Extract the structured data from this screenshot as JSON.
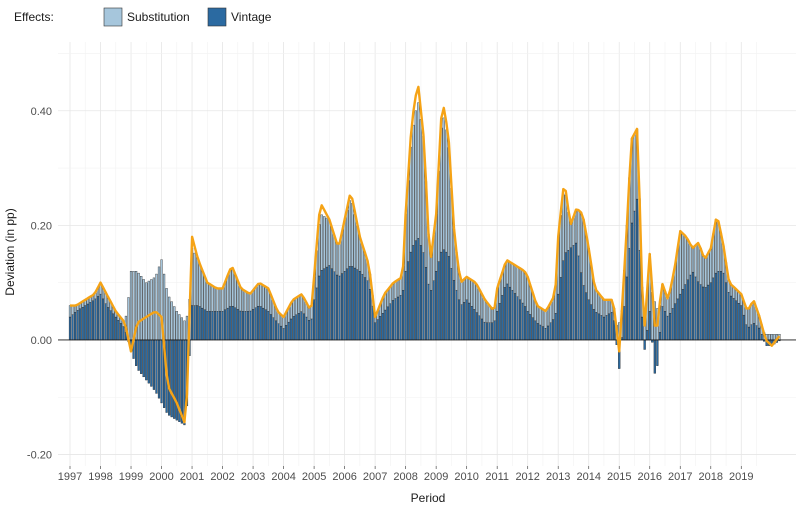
{
  "chart_data": {
    "type": "bar",
    "title": "",
    "xlabel": "Period",
    "ylabel": "Deviation (in pp)",
    "ylim": [
      -0.22,
      0.52
    ],
    "y_ticks": [
      -0.2,
      0.0,
      0.2,
      0.4
    ],
    "y_tick_labels": [
      "-0.20",
      "0.00",
      "0.20",
      "0.40"
    ],
    "x_range": [
      1997.0,
      2020.4
    ],
    "x_ticks": [
      1997,
      1998,
      1999,
      2000,
      2001,
      2002,
      2003,
      2004,
      2005,
      2006,
      2007,
      2008,
      2009,
      2010,
      2011,
      2012,
      2013,
      2014,
      2015,
      2016,
      2017,
      2018,
      2019
    ],
    "x_tick_labels": [
      "1997",
      "1998",
      "1999",
      "2000",
      "2001",
      "2002",
      "2003",
      "2004",
      "2005",
      "2006",
      "2007",
      "2008",
      "2009",
      "2010",
      "2011",
      "2012",
      "2013",
      "2014",
      "2015",
      "2016",
      "2017",
      "2018",
      "2019"
    ],
    "grid": true,
    "legend": {
      "title": "Effects:",
      "position": "top-left",
      "entries": [
        {
          "name": "Substitution",
          "color": "#a6c6dc"
        },
        {
          "name": "Vintage",
          "color": "#2b6aa1"
        }
      ]
    },
    "line_color": "#f5a316",
    "bar_outline": "#1a1a1a",
    "stacked": true,
    "series_breakpoints": {
      "x": [
        1997.0,
        1997.2,
        1997.5,
        1997.8,
        1998.0,
        1998.2,
        1998.5,
        1998.8,
        1999.0,
        1999.2,
        1999.5,
        1999.8,
        2000.0,
        2000.2,
        2000.5,
        2000.8,
        2001.0,
        2001.2,
        2001.5,
        2001.8,
        2002.0,
        2002.3,
        2002.6,
        2002.9,
        2003.2,
        2003.5,
        2003.8,
        2004.0,
        2004.3,
        2004.6,
        2004.9,
        2005.0,
        2005.2,
        2005.5,
        2005.8,
        2006.0,
        2006.2,
        2006.5,
        2006.8,
        2007.0,
        2007.3,
        2007.6,
        2007.9,
        2008.0,
        2008.2,
        2008.4,
        2008.6,
        2008.8,
        2009.0,
        2009.2,
        2009.4,
        2009.6,
        2009.8,
        2010.0,
        2010.3,
        2010.6,
        2010.9,
        2011.0,
        2011.3,
        2011.6,
        2011.9,
        2012.0,
        2012.3,
        2012.6,
        2012.9,
        2013.0,
        2013.2,
        2013.4,
        2013.6,
        2013.8,
        2014.0,
        2014.2,
        2014.5,
        2014.8,
        2015.0,
        2015.2,
        2015.4,
        2015.6,
        2015.8,
        2016.0,
        2016.2,
        2016.4,
        2016.6,
        2016.8,
        2017.0,
        2017.2,
        2017.4,
        2017.6,
        2017.8,
        2018.0,
        2018.2,
        2018.4,
        2018.6,
        2018.8,
        2019.0,
        2019.2,
        2019.4,
        2019.6,
        2019.8,
        2020.0,
        2020.3
      ],
      "vintage": [
        0.04,
        0.05,
        0.06,
        0.07,
        0.08,
        0.06,
        0.04,
        0.02,
        -0.02,
        -0.05,
        -0.07,
        -0.09,
        -0.11,
        -0.13,
        -0.14,
        -0.15,
        0.06,
        0.06,
        0.05,
        0.05,
        0.05,
        0.06,
        0.05,
        0.05,
        0.06,
        0.05,
        0.03,
        0.02,
        0.04,
        0.05,
        0.03,
        0.07,
        0.12,
        0.13,
        0.11,
        0.12,
        0.13,
        0.12,
        0.1,
        0.03,
        0.05,
        0.07,
        0.08,
        0.12,
        0.16,
        0.18,
        0.15,
        0.08,
        0.12,
        0.16,
        0.15,
        0.1,
        0.06,
        0.07,
        0.05,
        0.03,
        0.03,
        0.05,
        0.1,
        0.08,
        0.06,
        0.05,
        0.03,
        0.02,
        0.04,
        0.08,
        0.15,
        0.16,
        0.17,
        0.1,
        0.07,
        0.05,
        0.04,
        0.05,
        -0.05,
        0.08,
        0.2,
        0.25,
        -0.03,
        0.05,
        -0.08,
        0.06,
        0.04,
        0.06,
        0.08,
        0.1,
        0.12,
        0.1,
        0.09,
        0.1,
        0.12,
        0.12,
        0.08,
        0.07,
        0.06,
        0.02,
        0.03,
        0.02,
        -0.01,
        -0.01,
        0.0
      ],
      "substitution": [
        0.02,
        0.01,
        0.01,
        0.01,
        0.02,
        0.02,
        0.01,
        0.01,
        0.12,
        0.12,
        0.1,
        0.11,
        0.14,
        0.08,
        0.05,
        0.03,
        0.1,
        0.08,
        0.05,
        0.04,
        0.04,
        0.07,
        0.04,
        0.03,
        0.04,
        0.04,
        0.02,
        0.02,
        0.03,
        0.03,
        0.02,
        0.04,
        0.1,
        0.08,
        0.05,
        0.09,
        0.12,
        0.06,
        0.03,
        0.01,
        0.03,
        0.03,
        0.03,
        0.1,
        0.2,
        0.24,
        0.2,
        0.05,
        0.1,
        0.24,
        0.2,
        0.08,
        0.04,
        0.04,
        0.05,
        0.04,
        0.02,
        0.04,
        0.04,
        0.05,
        0.06,
        0.06,
        0.03,
        0.03,
        0.04,
        0.1,
        0.12,
        0.04,
        0.06,
        0.12,
        0.09,
        0.04,
        0.03,
        0.02,
        0.03,
        0.07,
        0.15,
        0.12,
        0.03,
        0.1,
        0.06,
        0.04,
        0.03,
        0.06,
        0.11,
        0.08,
        0.04,
        0.07,
        0.05,
        0.06,
        0.1,
        0.05,
        0.02,
        0.02,
        0.02,
        0.03,
        0.04,
        0.02,
        0.01,
        0.01,
        0.01
      ],
      "total": [
        0.06,
        0.06,
        0.07,
        0.08,
        0.1,
        0.08,
        0.05,
        0.03,
        -0.02,
        0.03,
        0.04,
        0.05,
        0.04,
        -0.08,
        -0.11,
        -0.15,
        0.18,
        0.14,
        0.1,
        0.09,
        0.09,
        0.13,
        0.09,
        0.08,
        0.1,
        0.09,
        0.05,
        0.04,
        0.07,
        0.08,
        0.05,
        0.11,
        0.24,
        0.21,
        0.16,
        0.21,
        0.26,
        0.18,
        0.13,
        0.04,
        0.08,
        0.1,
        0.11,
        0.22,
        0.38,
        0.45,
        0.35,
        0.13,
        0.22,
        0.42,
        0.36,
        0.18,
        0.1,
        0.11,
        0.1,
        0.07,
        0.05,
        0.09,
        0.14,
        0.13,
        0.12,
        0.11,
        0.06,
        0.05,
        0.08,
        0.18,
        0.28,
        0.2,
        0.23,
        0.22,
        0.16,
        0.09,
        0.07,
        0.07,
        -0.02,
        0.15,
        0.35,
        0.37,
        0.0,
        0.15,
        0.0,
        0.1,
        0.07,
        0.12,
        0.19,
        0.18,
        0.16,
        0.17,
        0.14,
        0.16,
        0.22,
        0.17,
        0.1,
        0.09,
        0.08,
        0.05,
        0.07,
        0.04,
        0.0,
        -0.01,
        0.01
      ]
    }
  }
}
